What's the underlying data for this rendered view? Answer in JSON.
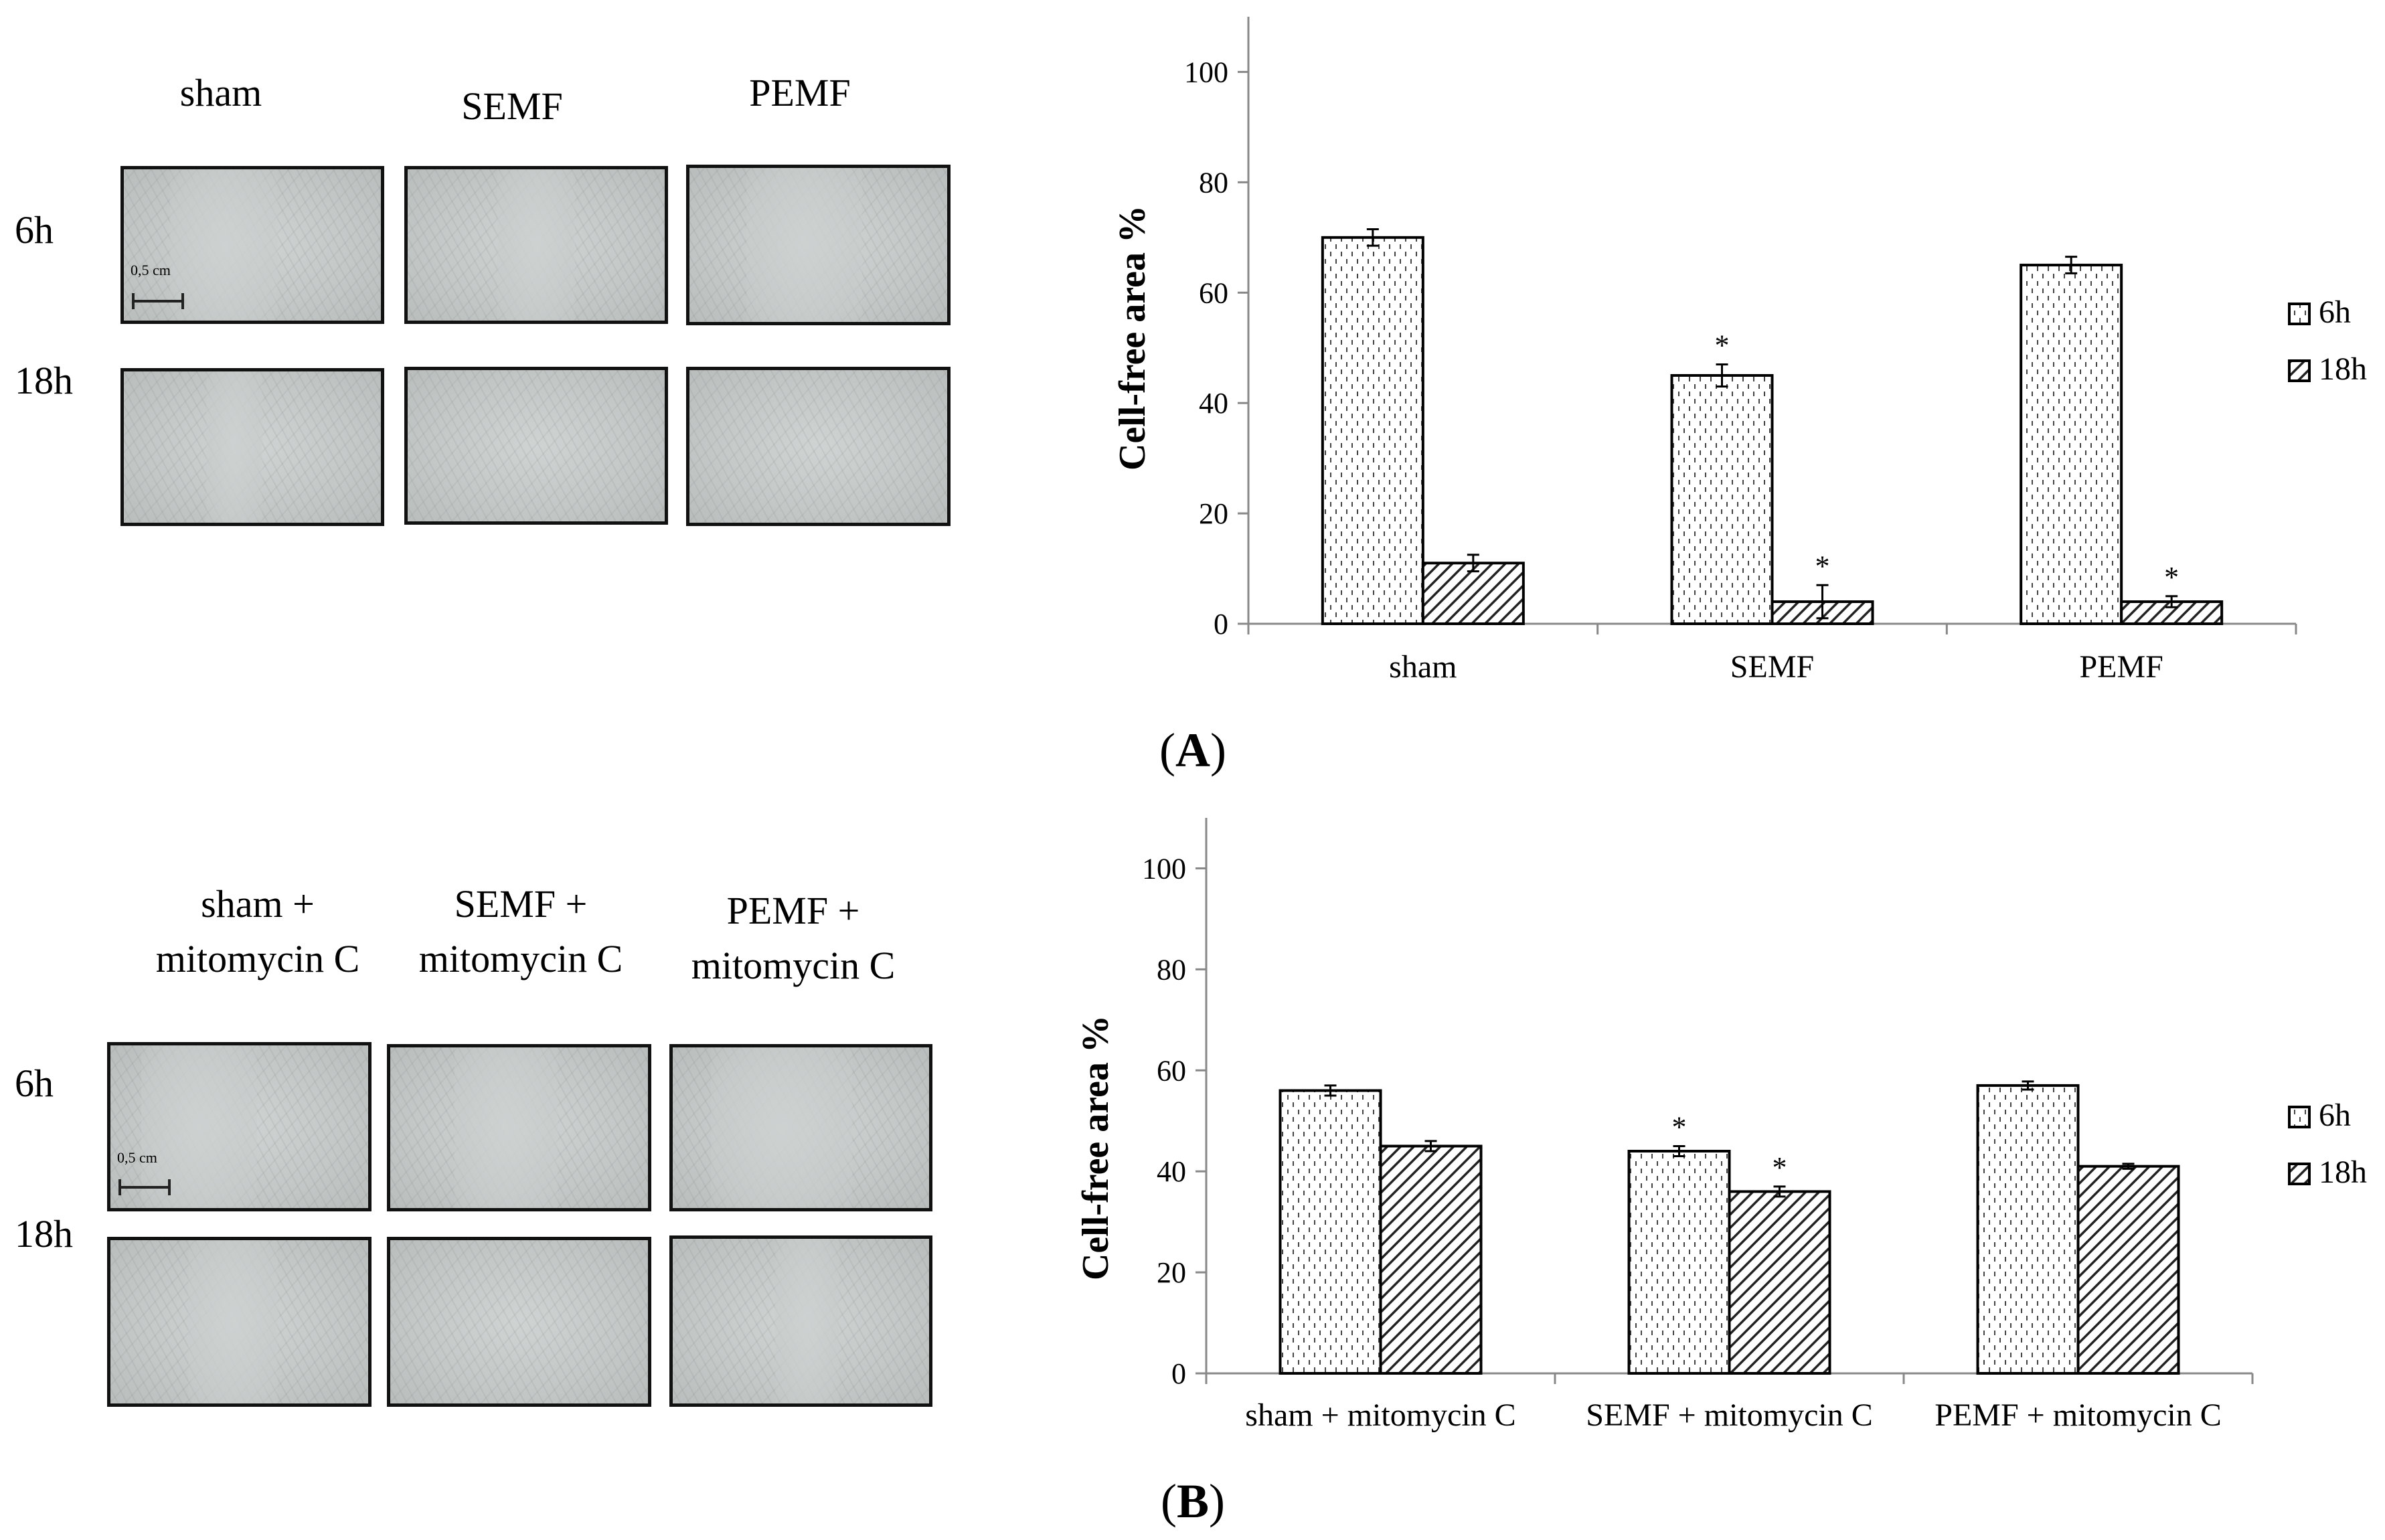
{
  "panel_a": {
    "letter": "A",
    "column_labels": [
      "sham",
      "SEMF",
      "PEMF"
    ],
    "row_labels": [
      "6h",
      "18h"
    ],
    "scale_bar_label": "0,5 cm"
  },
  "panel_b": {
    "letter": "B",
    "column_labels": [
      "sham +\nmitomycin C",
      "SEMF +\nmitomycin C",
      "PEMF +\nmitomycin C"
    ],
    "row_labels": [
      "6h",
      "18h"
    ],
    "scale_bar_label": "0,5 cm"
  },
  "chart_data": [
    {
      "type": "bar",
      "panel": "A",
      "title": "",
      "xlabel": "",
      "ylabel": "Cell-free area %",
      "ylim": [
        0,
        110
      ],
      "yticks": [
        0,
        20,
        40,
        60,
        80,
        100
      ],
      "categories": [
        "sham",
        "SEMF",
        "PEMF"
      ],
      "series": [
        {
          "name": "6h",
          "values": [
            70,
            45,
            65
          ],
          "errors": [
            1.5,
            2,
            1.5
          ],
          "significant": [
            false,
            true,
            false
          ]
        },
        {
          "name": "18h",
          "values": [
            11,
            4,
            4
          ],
          "errors": [
            1.5,
            3,
            1
          ],
          "significant": [
            false,
            true,
            true
          ]
        }
      ],
      "significance_marker": "*",
      "legend_position": "right"
    },
    {
      "type": "bar",
      "panel": "B",
      "title": "",
      "xlabel": "",
      "ylabel": "Cell-free area %",
      "ylim": [
        0,
        110
      ],
      "yticks": [
        0,
        20,
        40,
        60,
        80,
        100
      ],
      "categories": [
        "sham + mitomycin C",
        "SEMF + mitomycin C",
        "PEMF + mitomycin C"
      ],
      "series": [
        {
          "name": "6h",
          "values": [
            56,
            44,
            57
          ],
          "errors": [
            1,
            1,
            0.8
          ],
          "significant": [
            false,
            true,
            false
          ]
        },
        {
          "name": "18h",
          "values": [
            45,
            36,
            41
          ],
          "errors": [
            1,
            1,
            0.5
          ],
          "significant": [
            false,
            true,
            false
          ]
        }
      ],
      "significance_marker": "*",
      "legend_position": "right"
    }
  ]
}
